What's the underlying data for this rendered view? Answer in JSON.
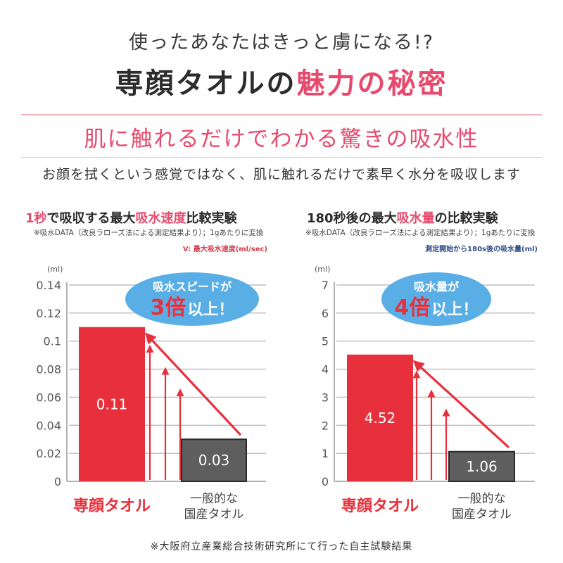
{
  "header": {
    "kicker": "使ったあなたはきっと虜になる!?",
    "headline_main": "専顔タオルの",
    "headline_accent": "魅力の秘密",
    "subheading": "肌に触れるだけでわかる驚きの吸水性",
    "lead": "お顔を拭くという感覚ではなく、肌に触れるだけで素早く水分を吸収します"
  },
  "footnote": "※大阪府立産業総合技術研究所にて行った自主試験結果",
  "colors": {
    "accent": "#e84a6e",
    "bar_primary": "#e8303c",
    "bar_secondary": "#5e5e5e",
    "callout": "#5aaee6",
    "arrow": "#e8303c"
  },
  "chart_data": [
    {
      "type": "bar",
      "title_pre": "1秒",
      "title_mid": "で吸収する最大",
      "title_red": "吸水速度",
      "title_post": "比較実験",
      "note": "※吸水DATA（改良ラローズ法による測定結果より）；1gあたりに変換",
      "legend_note": "V: 最大吸水速度(ml/sec)",
      "ylabel": "(ml)",
      "ylim": [
        0,
        0.14
      ],
      "yticks": [
        0,
        0.02,
        0.04,
        0.06,
        0.08,
        0.1,
        0.12,
        0.14
      ],
      "ytick_labels": [
        "0",
        "0.02",
        "0.04",
        "0.06",
        "0.08",
        "0.1",
        "0.12",
        "0.14"
      ],
      "categories": [
        [
          "専顔タオル"
        ],
        [
          "一般的な",
          "国産タオル"
        ]
      ],
      "values": [
        0.11,
        0.03
      ],
      "value_labels": [
        "0.11",
        "0.03"
      ],
      "callout_top": "吸水スピードが",
      "callout_big": "3倍",
      "callout_tail": "以上！",
      "grid": true
    },
    {
      "type": "bar",
      "title_pre": "180秒後の最大",
      "title_red": "吸水量",
      "title_post": "の比較実験",
      "note": "※吸水DATA（改良ラローズ法による測定結果より）；1gあたりに変換",
      "legend_note": "測定開始から180s後の吸水量(ml)",
      "ylabel": "(ml)",
      "ylim": [
        0,
        7
      ],
      "yticks": [
        0,
        1,
        2,
        3,
        4,
        5,
        6,
        7
      ],
      "ytick_labels": [
        "0",
        "1",
        "2",
        "3",
        "4",
        "5",
        "6",
        "7"
      ],
      "categories": [
        [
          "専顔タオル"
        ],
        [
          "一般的な",
          "国産タオル"
        ]
      ],
      "values": [
        4.52,
        1.06
      ],
      "value_labels": [
        "4.52",
        "1.06"
      ],
      "callout_top": "吸水量が",
      "callout_big": "4倍",
      "callout_tail": "以上！",
      "grid": true
    }
  ]
}
